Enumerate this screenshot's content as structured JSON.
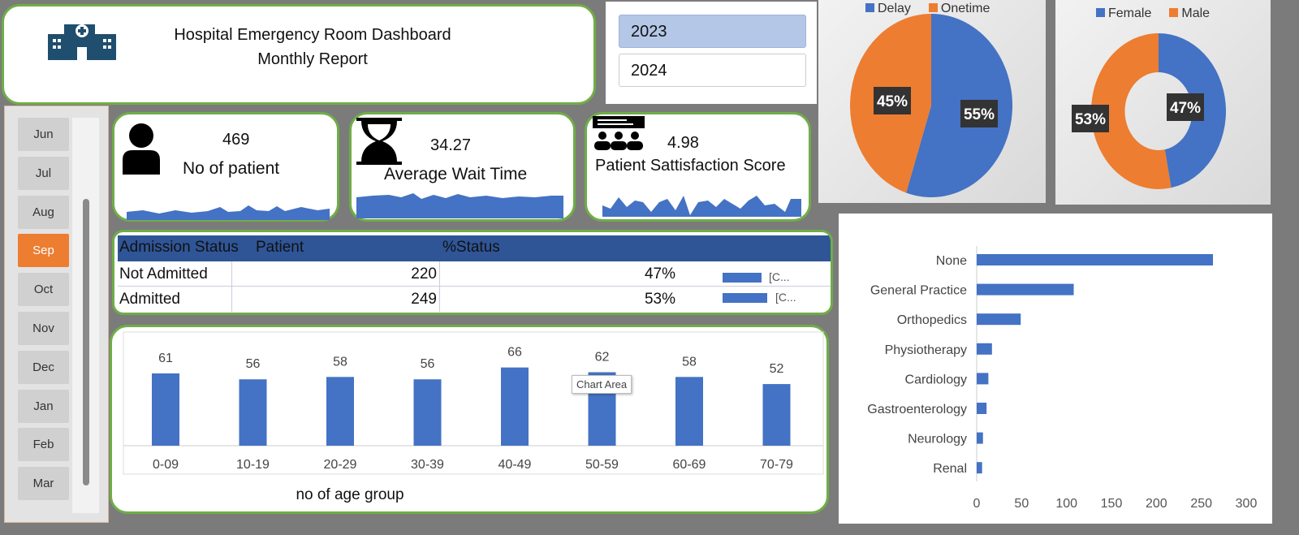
{
  "header": {
    "title": "Hospital Emergency Room Dashboard",
    "subtitle": "Monthly Report",
    "icon": "hospital-icon"
  },
  "years": [
    {
      "label": "2023",
      "selected": true
    },
    {
      "label": "2024",
      "selected": false
    }
  ],
  "months": [
    {
      "label": "Jun"
    },
    {
      "label": "Jul"
    },
    {
      "label": "Aug"
    },
    {
      "label": "Sep",
      "selected": true
    },
    {
      "label": "Oct"
    },
    {
      "label": "Nov"
    },
    {
      "label": "Dec"
    },
    {
      "label": "Jan"
    },
    {
      "label": "Feb"
    },
    {
      "label": "Mar"
    }
  ],
  "kpis": [
    {
      "value": "469",
      "label": "No of patient",
      "icon": "person-icon"
    },
    {
      "value": "34.27",
      "label": "Average Wait Time",
      "icon": "hourglass-icon"
    },
    {
      "value": "4.98",
      "label": "Patient Sattisfaction Score",
      "icon": "group-feedback-icon"
    }
  ],
  "table": {
    "headers": [
      "Admission Status",
      "Patient",
      "%Status"
    ],
    "rows": [
      {
        "status": "Not Admitted",
        "patient": "220",
        "pct": "47%",
        "mini": "[C..."
      },
      {
        "status": "Admitted",
        "patient": "249",
        "pct": "53%",
        "mini": "[C..."
      }
    ]
  },
  "tooltip": "Chart Area",
  "colors": {
    "blue": "#4472c4",
    "orange": "#ed7d31",
    "green": "#70ad47",
    "navy": "#2f5597"
  },
  "chart_data": [
    {
      "type": "pie",
      "legend": [
        "Delay",
        "Onetime"
      ],
      "values": [
        55,
        45
      ],
      "labels": [
        "55%",
        "45%"
      ]
    },
    {
      "type": "pie",
      "donut": true,
      "legend": [
        "Female",
        "Male"
      ],
      "values": [
        47,
        53
      ],
      "labels": [
        "47%",
        "53%"
      ]
    },
    {
      "type": "bar",
      "xlabel": "no of age group",
      "categories": [
        "0-09",
        "10-19",
        "20-29",
        "30-39",
        "40-49",
        "50-59",
        "60-69",
        "70-79"
      ],
      "values": [
        61,
        56,
        58,
        56,
        66,
        62,
        58,
        52
      ],
      "labels": [
        "61",
        "56",
        "58",
        "56",
        "66",
        "62",
        "58",
        "52"
      ],
      "ylim": [
        0,
        70
      ]
    },
    {
      "type": "bar",
      "orientation": "horizontal",
      "categories": [
        "None",
        "General Practice",
        "Orthopedics",
        "Physiotherapy",
        "Cardiology",
        "Gastroenterology",
        "Neurology",
        "Renal"
      ],
      "values": [
        263,
        108,
        49,
        17,
        13,
        11,
        7,
        6
      ],
      "xticks": [
        "0",
        "50",
        "100",
        "150",
        "200",
        "250",
        "300"
      ],
      "xlim": [
        0,
        300
      ]
    }
  ]
}
